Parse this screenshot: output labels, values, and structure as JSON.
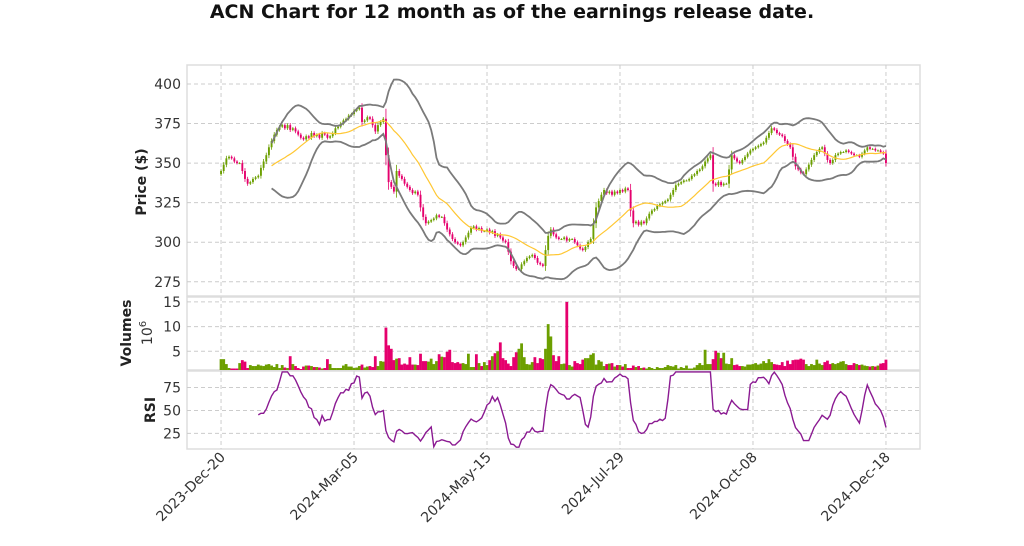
{
  "chart_data": {
    "type": "candlestick",
    "title": "ACN Chart for 12 month as of the earnings release date.",
    "x_tick_labels": [
      "2023-Dec-20",
      "2024-Mar-05",
      "2024-May-15",
      "2024-Jul-29",
      "2024-Oct-08",
      "2024-Dec-18"
    ],
    "x_tick_indices": [
      0,
      50,
      100,
      150,
      200,
      250
    ],
    "xlim": [
      -12.8,
      262.8
    ],
    "colors": {
      "up": "#6c9f00",
      "down": "#e5006d",
      "sma": "#ffc733",
      "bands": "#7a7a7a",
      "rsi": "#8b1a92",
      "grid": "#cccccc",
      "frame": "#dddddd"
    },
    "panels": {
      "price": {
        "ylabel": "Price ($)",
        "ylim": [
          266,
          412
        ],
        "yticks": [
          275,
          300,
          325,
          350,
          375,
          400
        ],
        "sma_period": 20,
        "band_std": 2
      },
      "volume": {
        "ylabel": "Volumes",
        "offset_label": "10",
        "offset_exp": "6",
        "ylim": [
          1.2,
          16
        ],
        "yticks": [
          5,
          10,
          15
        ]
      },
      "rsi": {
        "ylabel": "RSI",
        "ylim": [
          8,
          93
        ],
        "yticks": [
          25,
          50,
          75
        ],
        "period": 14
      }
    },
    "close": [
      345,
      349,
      353,
      354,
      353,
      351,
      350,
      350,
      345,
      340,
      337,
      338,
      340,
      341,
      342,
      347,
      351,
      355,
      360,
      364,
      368,
      371,
      373,
      374,
      372,
      374,
      371,
      372,
      370,
      368,
      366,
      365,
      367,
      366,
      369,
      367,
      368,
      366,
      369,
      368,
      366,
      367,
      369,
      372,
      373,
      375,
      377,
      378,
      380,
      381,
      383,
      384,
      385,
      376,
      377,
      379,
      378,
      374,
      370,
      374,
      376,
      378,
      355,
      338,
      335,
      332,
      345,
      342,
      340,
      337,
      335,
      333,
      331,
      332,
      330,
      322,
      316,
      312,
      313,
      314,
      315,
      317,
      316,
      316,
      312,
      308,
      305,
      302,
      300,
      299,
      298,
      300,
      303,
      306,
      309,
      310,
      308,
      309,
      307,
      307,
      308,
      306,
      307,
      304,
      305,
      303,
      301,
      300,
      294,
      288,
      285,
      283,
      283,
      286,
      288,
      290,
      291,
      292,
      290,
      287,
      286,
      285,
      295,
      304,
      308,
      305,
      303,
      302,
      302,
      303,
      301,
      302,
      302,
      300,
      298,
      296,
      295,
      297,
      300,
      302,
      312,
      322,
      326,
      330,
      333,
      331,
      332,
      330,
      332,
      331,
      333,
      332,
      334,
      333,
      320,
      312,
      313,
      311,
      313,
      312,
      315,
      318,
      320,
      321,
      323,
      324,
      325,
      326,
      327,
      330,
      333,
      336,
      337,
      338,
      339,
      339,
      340,
      342,
      343,
      345,
      346,
      348,
      351,
      353,
      355,
      337,
      336,
      338,
      336,
      337,
      337,
      346,
      355,
      353,
      351,
      350,
      352,
      354,
      356,
      358,
      359,
      360,
      361,
      362,
      363,
      366,
      369,
      372,
      371,
      369,
      368,
      367,
      364,
      362,
      360,
      354,
      348,
      346,
      344,
      343,
      346,
      349,
      352,
      355,
      357,
      359,
      360,
      356,
      352,
      350,
      352,
      355,
      356,
      357,
      357,
      358,
      357,
      356,
      355,
      355,
      354,
      356,
      358,
      360,
      359,
      359,
      358,
      358,
      357,
      356,
      350
    ],
    "volume_millions": [
      3.4,
      3.4,
      2.4,
      1.6,
      1.5,
      1.5,
      1.5,
      2.6,
      3.2,
      2.9,
      1.6,
      2.2,
      2.0,
      2.0,
      2.3,
      2.1,
      2.0,
      2.3,
      2.4,
      2.1,
      1.8,
      2.4,
      1.6,
      2.2,
      1.7,
      1.6,
      4.0,
      2.4,
      2.0,
      1.6,
      1.4,
      1.9,
      2.1,
      2.1,
      2.0,
      1.8,
      1.8,
      1.7,
      1.5,
      1.6,
      3.4,
      2.4,
      1.6,
      1.6,
      1.6,
      1.6,
      2.1,
      2.4,
      1.9,
      1.9,
      1.6,
      1.7,
      2.0,
      2.3,
      1.7,
      1.9,
      2.0,
      1.8,
      4.0,
      2.0,
      3.0,
      2.9,
      9.8,
      6.2,
      5.5,
      3.2,
      3.5,
      3.6,
      2.3,
      2.5,
      2.3,
      3.8,
      2.3,
      2.3,
      2.2,
      4.5,
      3.0,
      3.0,
      2.9,
      3.5,
      2.4,
      3.0,
      4.4,
      3.9,
      3.8,
      4.9,
      5.3,
      2.8,
      2.6,
      2.8,
      2.5,
      2.6,
      2.4,
      4.5,
      1.8,
      1.8,
      4.4,
      2.6,
      2.0,
      2.8,
      2.2,
      3.2,
      4.0,
      4.6,
      5.0,
      6.8,
      3.6,
      3.2,
      2.5,
      2.0,
      3.8,
      4.8,
      5.5,
      6.6,
      3.8,
      2.4,
      2.3,
      2.8,
      3.8,
      2.6,
      3.6,
      3.4,
      5.5,
      10.5,
      8.0,
      4.2,
      3.0,
      4.0,
      2.4,
      2.5,
      15.0,
      2.2,
      1.9,
      3.0,
      2.6,
      2.4,
      3.3,
      3.6,
      3.6,
      4.3,
      4.6,
      2.3,
      3.2,
      2.9,
      2.0,
      2.4,
      2.5,
      2.6,
      1.9,
      2.2,
      2.2,
      1.9,
      2.4,
      1.6,
      1.6,
      2.1,
      1.8,
      2.0,
      1.6,
      1.7,
      1.5,
      1.8,
      1.6,
      1.4,
      1.8,
      1.6,
      1.6,
      1.8,
      2.2,
      2.0,
      1.9,
      2.2,
      1.5,
      1.8,
      1.6,
      2.1,
      1.5,
      1.5,
      1.7,
      2.2,
      2.6,
      2.2,
      5.3,
      2.4,
      2.4,
      3.4,
      5.1,
      4.7,
      3.6,
      4.7,
      2.5,
      2.4,
      3.6,
      2.2,
      2.3,
      2.0,
      2.0,
      1.9,
      2.3,
      2.3,
      2.4,
      2.6,
      2.3,
      2.5,
      3.0,
      2.6,
      3.4,
      2.8,
      2.4,
      2.3,
      2.2,
      2.8,
      2.0,
      3.1,
      2.4,
      3.2,
      3.3,
      3.3,
      3.5,
      3.3,
      2.4,
      2.0,
      2.4,
      2.2,
      3.3,
      2.5,
      2.2,
      2.8,
      3.1,
      2.4,
      2.6,
      2.4,
      2.6,
      2.9,
      3.0,
      2.4,
      2.2,
      2.2,
      2.6,
      2.4,
      2.2,
      2.3,
      2.1,
      2.0,
      1.9,
      2.0,
      1.9,
      2.1,
      2.5,
      2.6,
      3.3
    ]
  }
}
